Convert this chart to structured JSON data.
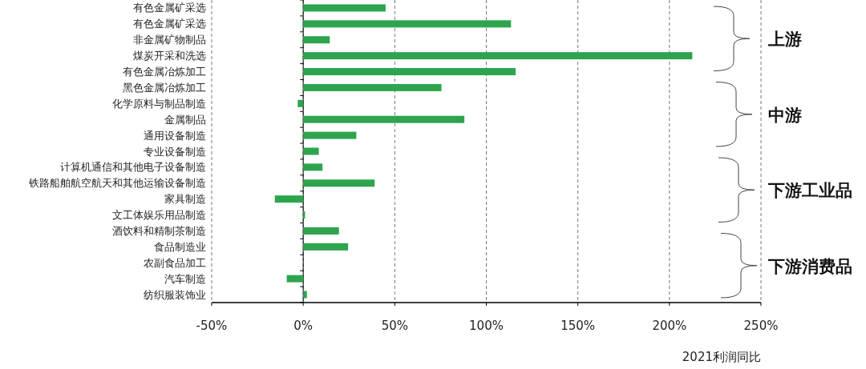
{
  "chart_data": {
    "type": "bar",
    "orientation": "horizontal",
    "xlabel": "2021利润同比",
    "categories": [
      "有色金属矿采选",
      "有色金属矿采选",
      "非金属矿物制品",
      "煤炭开采和洗选",
      "有色金属冶炼加工",
      "黑色金属冶炼加工",
      "化学原料与制品制造",
      "金属制品",
      "通用设备制造",
      "专业设备制造",
      "计算机通信和其他电子设备制造",
      "铁路船舶航空航天和其他运输设备制造",
      "家具制造",
      "文工体娱乐用品制造",
      "酒饮料和精制茶制造",
      "食品制造业",
      "农副食品加工",
      "汽车制造",
      "纺织服装饰业"
    ],
    "values": [
      45,
      113.5,
      14.5,
      212.5,
      116,
      75.5,
      -3,
      88,
      29,
      8.5,
      10.5,
      39,
      -15.5,
      1,
      19.5,
      24.5,
      0,
      -9,
      2
    ],
    "color": "#2ea44f",
    "xlim": [
      -50,
      250
    ],
    "xticks": [
      {
        "value": -50,
        "label": "-50%"
      },
      {
        "value": 0,
        "label": "0%"
      },
      {
        "value": 50,
        "label": "50%"
      },
      {
        "value": 100,
        "label": "100%"
      },
      {
        "value": 150,
        "label": "150%"
      },
      {
        "value": 200,
        "label": "200%"
      },
      {
        "value": 250,
        "label": "250%"
      }
    ],
    "grid": "x",
    "annotations": [
      "上游",
      "中游",
      "下游工业品",
      "下游消费品"
    ]
  }
}
